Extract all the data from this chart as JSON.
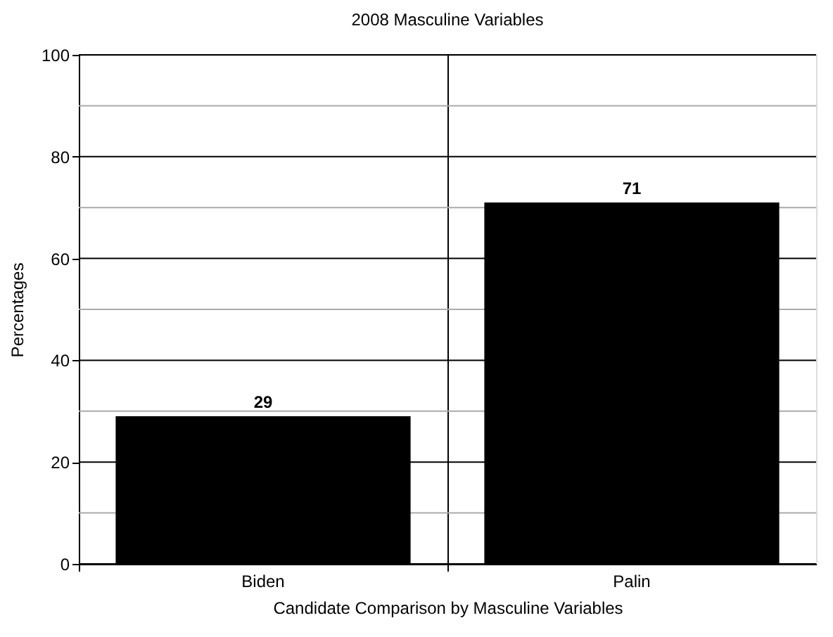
{
  "chart_data": {
    "type": "bar",
    "title": "2008 Masculine Variables",
    "xlabel": "Candidate Comparison by Masculine Variables",
    "ylabel": "Percentages",
    "categories": [
      "Biden",
      "Palin"
    ],
    "values": [
      29,
      71
    ],
    "color": "#000000",
    "ylim": [
      0,
      100
    ],
    "yticks": [
      0,
      {
        "value": 10,
        "label": null
      },
      20,
      {
        "value": 30,
        "label": null
      },
      40,
      {
        "value": 50,
        "label": null
      },
      60,
      {
        "value": 70,
        "label": null
      },
      80,
      {
        "value": 90,
        "label": null
      },
      100
    ],
    "grid": true,
    "data_labels": true
  }
}
